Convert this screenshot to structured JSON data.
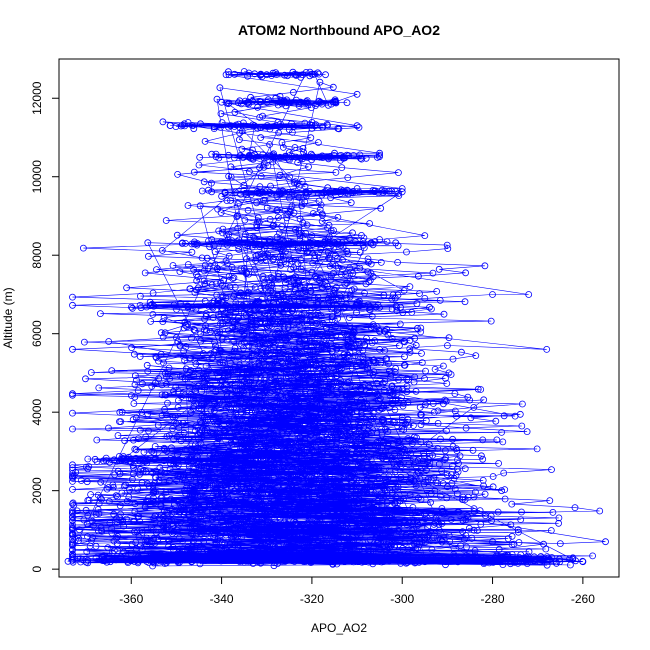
{
  "chart_data": {
    "type": "scatter",
    "title": "ATOM2 Northbound APO_AO2",
    "xlabel": "APO_AO2",
    "ylabel": "Altitude (m)",
    "xlim": [
      -376,
      -252
    ],
    "ylim": [
      -200,
      13000
    ],
    "x_ticks": [
      -360,
      -340,
      -320,
      -300,
      -280,
      -260
    ],
    "y_ticks": [
      0,
      2000,
      4000,
      6000,
      8000,
      10000,
      12000
    ],
    "grid": false,
    "legend": "none",
    "plot_style": "points connected by lines (open circles)",
    "colors": {
      "series": "#0000ff",
      "frame": "#000000"
    },
    "series": [
      {
        "note_points": "approximate profile envelope read off the plot",
        "points": [
          [
            -374,
            200
          ],
          [
            -366,
            250
          ],
          [
            -355,
            200
          ],
          [
            -345,
            230
          ],
          [
            -335,
            180
          ],
          [
            -320,
            200
          ],
          [
            -305,
            210
          ],
          [
            -290,
            220
          ],
          [
            -275,
            200
          ],
          [
            -260,
            190
          ],
          [
            -370,
            1500
          ],
          [
            -355,
            1300
          ],
          [
            -340,
            1200
          ],
          [
            -325,
            1000
          ],
          [
            -310,
            900
          ],
          [
            -295,
            800
          ],
          [
            -280,
            700
          ],
          [
            -265,
            650
          ],
          [
            -255,
            700
          ],
          [
            -368,
            2800
          ],
          [
            -350,
            2700
          ],
          [
            -335,
            2600
          ],
          [
            -320,
            2500
          ],
          [
            -305,
            2300
          ],
          [
            -290,
            2100
          ],
          [
            -278,
            2000
          ],
          [
            -362,
            4000
          ],
          [
            -345,
            4100
          ],
          [
            -330,
            4200
          ],
          [
            -315,
            4000
          ],
          [
            -300,
            3800
          ],
          [
            -288,
            3900
          ],
          [
            -275,
            3900
          ],
          [
            -365,
            5800
          ],
          [
            -350,
            5900
          ],
          [
            -335,
            6000
          ],
          [
            -320,
            5800
          ],
          [
            -305,
            5600
          ],
          [
            -290,
            5700
          ],
          [
            -268,
            5600
          ],
          [
            -355,
            6700
          ],
          [
            -340,
            6800
          ],
          [
            -325,
            6900
          ],
          [
            -310,
            6800
          ],
          [
            -295,
            6900
          ],
          [
            -280,
            7000
          ],
          [
            -272,
            7000
          ],
          [
            -348,
            8300
          ],
          [
            -335,
            8400
          ],
          [
            -320,
            8500
          ],
          [
            -305,
            8400
          ],
          [
            -295,
            8500
          ],
          [
            -340,
            9500
          ],
          [
            -325,
            9600
          ],
          [
            -310,
            9700
          ],
          [
            -300,
            9700
          ],
          [
            -345,
            10300
          ],
          [
            -330,
            10500
          ],
          [
            -315,
            10600
          ],
          [
            -305,
            10600
          ],
          [
            -353,
            11400
          ],
          [
            -338,
            11300
          ],
          [
            -325,
            11200
          ],
          [
            -310,
            11300
          ],
          [
            -340,
            11900
          ],
          [
            -328,
            12000
          ],
          [
            -315,
            11900
          ],
          [
            -310,
            12100
          ],
          [
            -339,
            12600
          ],
          [
            -330,
            12600
          ],
          [
            -322,
            12600
          ],
          [
            -317,
            12600
          ]
        ]
      }
    ]
  }
}
